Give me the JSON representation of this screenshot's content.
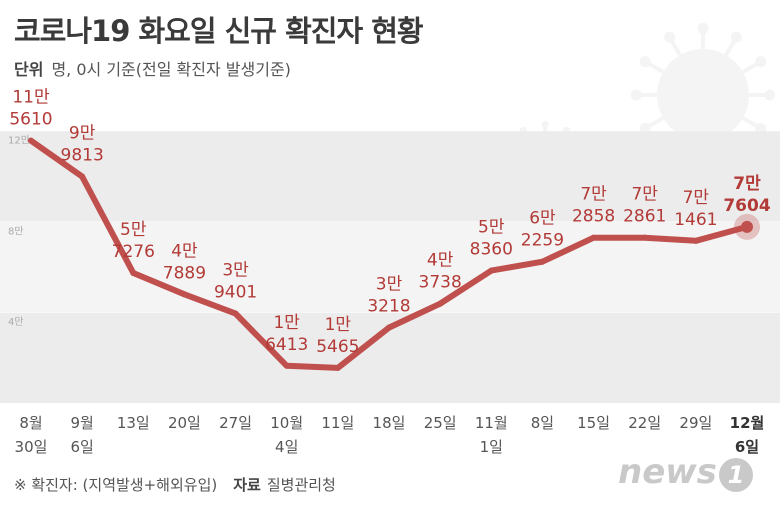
{
  "title": "코로나19 화요일 신규 확진자 현황",
  "unit_label": "단위",
  "unit_text": "명, 0시 기준(전일 확진자 발생기준)",
  "footer": {
    "note": "※ 확진자: (지역발생+해외유입)",
    "source_label": "자료",
    "source": "질병관리청"
  },
  "logo": {
    "text": "news",
    "mark": "1"
  },
  "chart_data": {
    "type": "line",
    "y_ticks": [
      {
        "value": 40000,
        "label": "4만"
      },
      {
        "value": 80000,
        "label": "8만"
      },
      {
        "value": 120000,
        "label": "12만"
      }
    ],
    "ylim": [
      0,
      130000
    ],
    "line_color": "#c0504d",
    "highlight_color": "#c0504d",
    "points": [
      {
        "x1": "8월",
        "x2": "30일",
        "value": 115610,
        "l1": "11만",
        "l2": "5610"
      },
      {
        "x1": "9월",
        "x2": "6일",
        "value": 99813,
        "l1": "9만",
        "l2": "9813"
      },
      {
        "x1": "13일",
        "x2": "",
        "value": 57276,
        "l1": "5만",
        "l2": "7276"
      },
      {
        "x1": "20일",
        "x2": "",
        "value": 47889,
        "l1": "4만",
        "l2": "7889"
      },
      {
        "x1": "27일",
        "x2": "",
        "value": 39401,
        "l1": "3만",
        "l2": "9401"
      },
      {
        "x1": "10월",
        "x2": "4일",
        "value": 16413,
        "l1": "1만",
        "l2": "6413"
      },
      {
        "x1": "11일",
        "x2": "",
        "value": 15465,
        "l1": "1만",
        "l2": "5465"
      },
      {
        "x1": "18일",
        "x2": "",
        "value": 33218,
        "l1": "3만",
        "l2": "3218"
      },
      {
        "x1": "25일",
        "x2": "",
        "value": 43738,
        "l1": "4만",
        "l2": "3738"
      },
      {
        "x1": "11월",
        "x2": "1일",
        "value": 58360,
        "l1": "5만",
        "l2": "8360"
      },
      {
        "x1": "8일",
        "x2": "",
        "value": 62259,
        "l1": "6만",
        "l2": "2259"
      },
      {
        "x1": "15일",
        "x2": "",
        "value": 72858,
        "l1": "7만",
        "l2": "2858"
      },
      {
        "x1": "22일",
        "x2": "",
        "value": 72861,
        "l1": "7만",
        "l2": "2861"
      },
      {
        "x1": "29일",
        "x2": "",
        "value": 71461,
        "l1": "7만",
        "l2": "1461"
      },
      {
        "x1": "12월",
        "x2": "6일",
        "value": 77604,
        "l1": "7만",
        "l2": "7604",
        "highlight": true
      }
    ]
  }
}
